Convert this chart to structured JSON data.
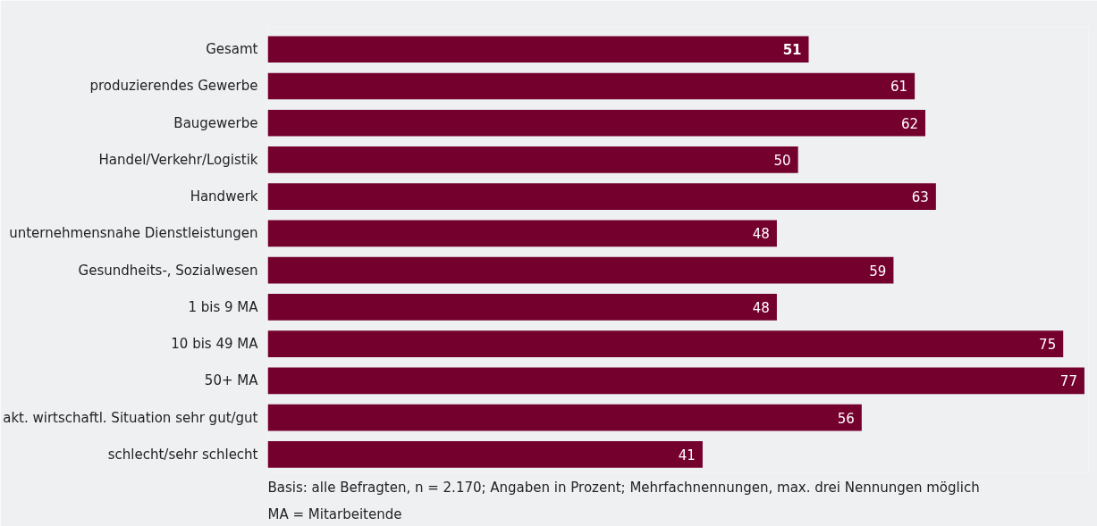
{
  "chart_data": {
    "type": "bar",
    "orientation": "horizontal",
    "data_labels": true,
    "grid": false,
    "color": "#74002e",
    "categories": [
      "Gesamt",
      "produzierendes Gewerbe",
      "Baugewerbe",
      "Handel/Verkehr/Logistik",
      "Handwerk",
      "unternehmensnahe Dienstleistungen",
      "Gesundheits-, Sozialwesen",
      "1 bis 9 MA",
      "10 bis 49 MA",
      "50+ MA",
      "akt. wirtschaftl. Situation sehr gut/gut",
      "schlecht/sehr schlecht"
    ],
    "values": [
      51,
      61,
      62,
      50,
      63,
      48,
      59,
      48,
      75,
      77,
      56,
      41
    ],
    "annotations": [
      "Basis: alle Befragten, n = 2.170; Angaben in Prozent; Mehrfachnennungen, max. drei Nennungen möglich",
      "MA = Mitarbeitende"
    ]
  }
}
